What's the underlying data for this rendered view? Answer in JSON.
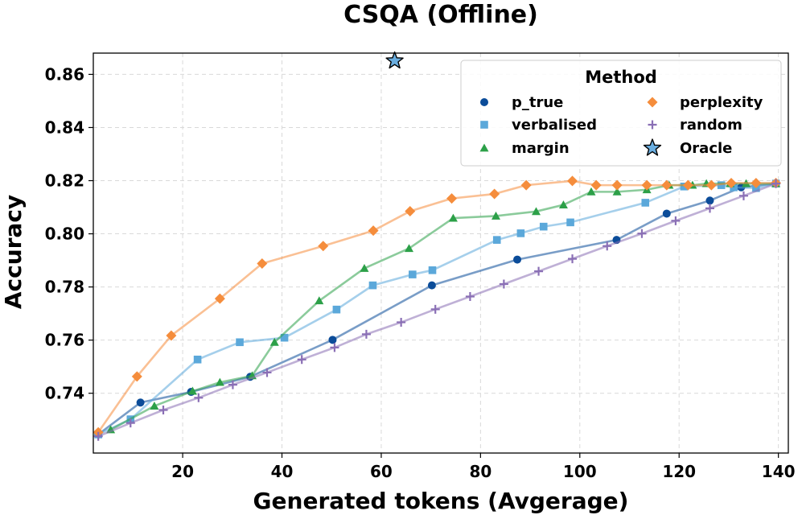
{
  "chart_data": {
    "type": "line",
    "title": "CSQA (Offline)",
    "xlabel": "Generated tokens (Avgerage)",
    "ylabel": "Accuracy",
    "xlim": [
      2,
      142
    ],
    "ylim": [
      0.7175,
      0.868
    ],
    "xticks": [
      20,
      40,
      60,
      80,
      100,
      120,
      140
    ],
    "yticks": [
      0.74,
      0.76,
      0.78,
      0.8,
      0.82,
      0.84,
      0.86
    ],
    "xtick_labels": [
      "20",
      "40",
      "60",
      "80",
      "100",
      "120",
      "140"
    ],
    "ytick_labels": [
      "0.74",
      "0.76",
      "0.78",
      "0.80",
      "0.82",
      "0.84",
      "0.86"
    ],
    "grid": true,
    "legend": {
      "title": "Method",
      "placement": "top-right",
      "entries": [
        "p_true",
        "perplexity",
        "verbalised",
        "random",
        "margin",
        "Oracle"
      ]
    },
    "series": [
      {
        "name": "p_true",
        "color": "#0b4c99",
        "marker": "circle",
        "x": [
          3,
          11.5,
          21.7,
          33.6,
          50.2,
          70.2,
          87.4,
          107.4,
          117.5,
          126.2,
          132.5,
          139.5
        ],
        "y": [
          0.7245,
          0.7365,
          0.7405,
          0.7462,
          0.7601,
          0.7806,
          0.7903,
          0.7977,
          0.8076,
          0.8125,
          0.8175,
          0.8189
        ]
      },
      {
        "name": "verbalised",
        "color": "#5ba8da",
        "marker": "square",
        "x": [
          3,
          9.5,
          23,
          31.5,
          40.5,
          51,
          58.3,
          66.3,
          70.3,
          83.3,
          88.1,
          92.7,
          98.1,
          113.2,
          121,
          128.5,
          131,
          135.5,
          139.5
        ],
        "y": [
          0.7245,
          0.7302,
          0.7527,
          0.7592,
          0.7609,
          0.7715,
          0.7806,
          0.7847,
          0.7863,
          0.7977,
          0.8002,
          0.8027,
          0.8043,
          0.8117,
          0.8178,
          0.8183,
          0.8175,
          0.8172,
          0.8189
        ]
      },
      {
        "name": "margin",
        "color": "#2ca048",
        "marker": "triangle",
        "x": [
          5.5,
          14.3,
          22,
          27.5,
          34,
          38.5,
          47.5,
          56.6,
          65.6,
          74.5,
          83.1,
          91.2,
          96.7,
          102.3,
          107.5,
          113.5,
          118,
          122.7,
          125.5,
          130.3,
          133.5,
          139.5
        ],
        "y": [
          0.7263,
          0.7352,
          0.7408,
          0.7441,
          0.7466,
          0.7592,
          0.7748,
          0.787,
          0.7945,
          0.8059,
          0.8067,
          0.8084,
          0.8109,
          0.8158,
          0.8158,
          0.8166,
          0.8183,
          0.8183,
          0.8189,
          0.8189,
          0.8189,
          0.8189
        ]
      },
      {
        "name": "perplexity",
        "color": "#f58d3c",
        "marker": "diamond",
        "x": [
          3,
          10.8,
          17.7,
          27.5,
          36,
          48.3,
          58.4,
          65.8,
          74.2,
          82.8,
          89.2,
          98.5,
          103.3,
          107.5,
          113.5,
          117.5,
          121.8,
          126.5,
          130.5,
          135.5,
          139.5
        ],
        "y": [
          0.7253,
          0.7463,
          0.7617,
          0.7756,
          0.7888,
          0.7954,
          0.8012,
          0.8085,
          0.8133,
          0.815,
          0.8183,
          0.8199,
          0.8183,
          0.8183,
          0.8183,
          0.8183,
          0.8183,
          0.8183,
          0.8191,
          0.8191,
          0.8191
        ]
      },
      {
        "name": "random",
        "color": "#8a6fb5",
        "marker": "plus",
        "x": [
          3,
          9.5,
          16.1,
          23.2,
          30.1,
          37,
          44,
          50.6,
          57,
          64,
          70.9,
          77.9,
          84.7,
          91.7,
          98.5,
          105.5,
          112.5,
          119.3,
          126.2,
          133,
          139.5
        ],
        "y": [
          0.7238,
          0.7288,
          0.7337,
          0.7383,
          0.7432,
          0.7478,
          0.7527,
          0.7572,
          0.7622,
          0.7667,
          0.7716,
          0.7764,
          0.7811,
          0.7859,
          0.7906,
          0.7954,
          0.8001,
          0.8049,
          0.8096,
          0.8143,
          0.8189
        ]
      }
    ],
    "oracle": {
      "name": "Oracle",
      "color": "#6aaee0",
      "marker": "star",
      "x": 62.7,
      "y": 0.8651
    }
  }
}
